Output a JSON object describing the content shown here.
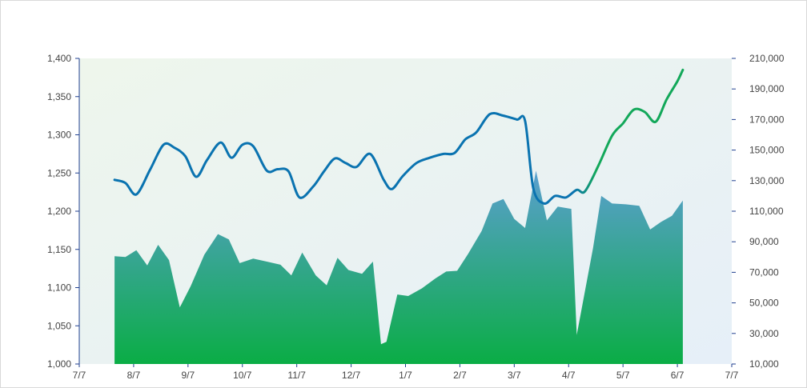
{
  "chart_data": {
    "type": "line",
    "title": "",
    "xlabel": "",
    "ylabel_left": "",
    "ylabel_right": "",
    "x_tick_labels": [
      "7/7",
      "8/7",
      "9/7",
      "10/7",
      "11/7",
      "12/7",
      "1/7",
      "2/7",
      "3/7",
      "4/7",
      "5/7",
      "6/7",
      "7/7"
    ],
    "left_axis": {
      "min": 1000,
      "max": 1400,
      "tick_values": [
        1000,
        1050,
        1100,
        1150,
        1200,
        1250,
        1300,
        1350,
        1400
      ],
      "tick_labels": [
        "1,000",
        "1,050",
        "1,100",
        "1,150",
        "1,200",
        "1,250",
        "1,300",
        "1,350",
        "1,400"
      ]
    },
    "right_axis": {
      "min": 10000,
      "max": 210000,
      "tick_values": [
        10000,
        30000,
        50000,
        70000,
        90000,
        110000,
        130000,
        150000,
        170000,
        190000,
        210000
      ],
      "tick_labels": [
        "10,000",
        "30,000",
        "50,000",
        "70,000",
        "90,000",
        "110,000",
        "130,000",
        "150,000",
        "170,000",
        "190,000",
        "210,000"
      ]
    },
    "colors": {
      "plot_bg_start": "#eef6ec",
      "plot_bg_end": "#e6eff8",
      "line_blue": "#0a73b0",
      "line_green": "#13a85a",
      "area_top": "#5b9fd0",
      "area_bottom": "#0aad45"
    },
    "series": [
      {
        "kind": "area",
        "axis": "right",
        "points": [
          [
            0.65,
            80500
          ],
          [
            0.85,
            80000
          ],
          [
            1.05,
            84500
          ],
          [
            1.25,
            74500
          ],
          [
            1.45,
            88000
          ],
          [
            1.65,
            78000
          ],
          [
            1.85,
            47000
          ],
          [
            2.05,
            61000
          ],
          [
            2.3,
            81500
          ],
          [
            2.55,
            95000
          ],
          [
            2.75,
            91500
          ],
          [
            2.95,
            76000
          ],
          [
            3.2,
            79000
          ],
          [
            3.45,
            77000
          ],
          [
            3.7,
            75000
          ],
          [
            3.9,
            68000
          ],
          [
            4.1,
            83000
          ],
          [
            4.35,
            68000
          ],
          [
            4.55,
            61500
          ],
          [
            4.75,
            79500
          ],
          [
            4.95,
            71500
          ],
          [
            5.2,
            69000
          ],
          [
            5.4,
            77000
          ],
          [
            5.55,
            23000
          ],
          [
            5.65,
            24500
          ],
          [
            5.85,
            55500
          ],
          [
            6.05,
            54500
          ],
          [
            6.3,
            59500
          ],
          [
            6.55,
            66000
          ],
          [
            6.75,
            70500
          ],
          [
            6.95,
            71000
          ],
          [
            7.15,
            82000
          ],
          [
            7.4,
            97000
          ],
          [
            7.6,
            115000
          ],
          [
            7.8,
            118000
          ],
          [
            8.0,
            105000
          ],
          [
            8.2,
            99000
          ],
          [
            8.4,
            136500
          ],
          [
            8.6,
            104000
          ],
          [
            8.8,
            113000
          ],
          [
            9.05,
            111500
          ],
          [
            9.15,
            29000
          ],
          [
            9.45,
            86000
          ],
          [
            9.6,
            120000
          ],
          [
            9.8,
            115000
          ],
          [
            10.05,
            114500
          ],
          [
            10.3,
            113500
          ],
          [
            10.5,
            98000
          ],
          [
            10.7,
            103000
          ],
          [
            10.9,
            107000
          ],
          [
            11.1,
            117000
          ]
        ]
      },
      {
        "kind": "line",
        "axis": "left",
        "points": [
          [
            0.65,
            1241
          ],
          [
            0.85,
            1237
          ],
          [
            1.05,
            1222
          ],
          [
            1.3,
            1254
          ],
          [
            1.55,
            1287
          ],
          [
            1.75,
            1283
          ],
          [
            1.95,
            1272
          ],
          [
            2.15,
            1245
          ],
          [
            2.35,
            1267
          ],
          [
            2.6,
            1290
          ],
          [
            2.8,
            1270
          ],
          [
            3.0,
            1287
          ],
          [
            3.2,
            1285
          ],
          [
            3.45,
            1253
          ],
          [
            3.65,
            1255
          ],
          [
            3.85,
            1252
          ],
          [
            4.05,
            1218
          ],
          [
            4.3,
            1232
          ],
          [
            4.5,
            1252
          ],
          [
            4.7,
            1269
          ],
          [
            4.9,
            1263
          ],
          [
            5.1,
            1258
          ],
          [
            5.35,
            1275
          ],
          [
            5.6,
            1241
          ],
          [
            5.75,
            1229
          ],
          [
            5.95,
            1246
          ],
          [
            6.2,
            1263
          ],
          [
            6.45,
            1270
          ],
          [
            6.7,
            1275
          ],
          [
            6.9,
            1276
          ],
          [
            7.1,
            1294
          ],
          [
            7.3,
            1303
          ],
          [
            7.55,
            1327
          ],
          [
            7.8,
            1325
          ],
          [
            8.05,
            1320
          ],
          [
            8.2,
            1318
          ],
          [
            8.35,
            1230
          ],
          [
            8.55,
            1210
          ],
          [
            8.75,
            1220
          ],
          [
            8.95,
            1218
          ],
          [
            9.15,
            1228
          ],
          [
            9.3,
            1226
          ],
          [
            9.55,
            1260
          ],
          [
            9.8,
            1299
          ],
          [
            10.0,
            1315
          ],
          [
            10.2,
            1333
          ],
          [
            10.4,
            1330
          ],
          [
            10.6,
            1317
          ],
          [
            10.8,
            1346
          ],
          [
            11.0,
            1370
          ],
          [
            11.1,
            1385
          ]
        ],
        "color_segments": [
          {
            "from_x": 0.65,
            "to_x": 9.3,
            "color": "#0a73b0"
          },
          {
            "from_x": 9.3,
            "to_x": 11.1,
            "color": "#13a85a"
          }
        ]
      }
    ],
    "grid": false,
    "legend": "none"
  }
}
